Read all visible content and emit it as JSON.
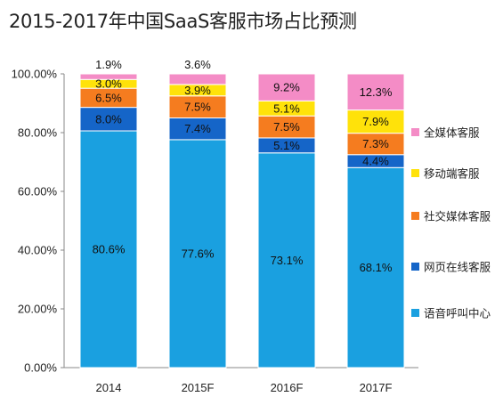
{
  "chart_data": {
    "type": "bar",
    "stacked": true,
    "title": "2015-2017年中国SaaS客服市场占比预测",
    "categories": [
      "2014",
      "2015F",
      "2016F",
      "2017F"
    ],
    "ylim": [
      0,
      100
    ],
    "yticks": [
      "0.00%",
      "20.00%",
      "40.00%",
      "60.00%",
      "80.00%",
      "100.00%"
    ],
    "legend_position": "right",
    "series": [
      {
        "name": "语音呼叫中心",
        "color": "#1aa0e0",
        "values": [
          80.6,
          77.6,
          73.1,
          68.1
        ],
        "labels": [
          "80.6%",
          "77.6%",
          "73.1%",
          "68.1%"
        ]
      },
      {
        "name": "网页在线客服",
        "color": "#1565c8",
        "values": [
          8.0,
          7.4,
          5.1,
          4.4
        ],
        "labels": [
          "8.0%",
          "7.4%",
          "5.1%",
          "4.4%"
        ]
      },
      {
        "name": "社交媒体客服",
        "color": "#f57c1f",
        "values": [
          6.5,
          7.5,
          7.5,
          7.3
        ],
        "labels": [
          "6.5%",
          "7.5%",
          "7.5%",
          "7.3%"
        ]
      },
      {
        "name": "移动端客服",
        "color": "#ffe20a",
        "values": [
          3.0,
          3.9,
          5.1,
          7.9
        ],
        "labels": [
          "3.0%",
          "3.9%",
          "5.1%",
          "7.9%"
        ]
      },
      {
        "name": "全媒体客服",
        "color": "#f48cc6",
        "values": [
          1.9,
          3.6,
          9.2,
          12.3
        ],
        "labels": [
          "1.9%",
          "3.6%",
          "9.2%",
          "12.3%"
        ]
      }
    ]
  }
}
